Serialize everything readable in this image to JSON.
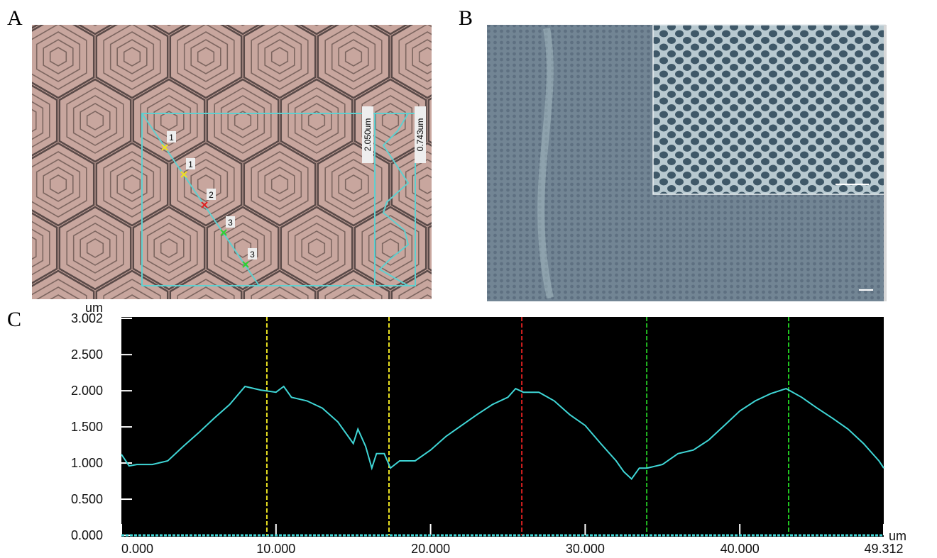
{
  "panel_labels": [
    "A",
    "B",
    "C"
  ],
  "panel_a": {
    "markers": [
      "1",
      "1",
      "2",
      "3",
      "3"
    ],
    "scale_labels": [
      "2.050um",
      "0.743um"
    ]
  },
  "chart_data": {
    "type": "line",
    "ylabel": "um",
    "xlabel": "um",
    "x": [
      0,
      0.5,
      1,
      2,
      3,
      4,
      5,
      6,
      7,
      8,
      9,
      10,
      10.5,
      11,
      12,
      13,
      14,
      15,
      15.3,
      15.8,
      16.2,
      16.5,
      17,
      17.4,
      18,
      19,
      20,
      21,
      22,
      23,
      24,
      25,
      25.5,
      26,
      27,
      28,
      29,
      30,
      31,
      32,
      32.5,
      33,
      33.5,
      34,
      35,
      36,
      37,
      38,
      39,
      40,
      41,
      42,
      43,
      44,
      45,
      46,
      47,
      48,
      49,
      49.312
    ],
    "values": [
      1.12,
      0.96,
      0.98,
      0.98,
      1.03,
      1.23,
      1.42,
      1.62,
      1.81,
      2.06,
      2.01,
      1.98,
      2.06,
      1.91,
      1.86,
      1.76,
      1.57,
      1.27,
      1.47,
      1.23,
      0.93,
      1.13,
      1.13,
      0.93,
      1.03,
      1.03,
      1.18,
      1.37,
      1.52,
      1.67,
      1.81,
      1.91,
      2.03,
      1.98,
      1.98,
      1.86,
      1.67,
      1.52,
      1.27,
      1.03,
      0.88,
      0.78,
      0.93,
      0.93,
      0.98,
      1.13,
      1.18,
      1.32,
      1.52,
      1.72,
      1.86,
      1.96,
      2.03,
      1.91,
      1.76,
      1.62,
      1.47,
      1.27,
      1.03,
      0.93
    ],
    "color": "#3fd6d6",
    "cursors": [
      {
        "x": 9.41,
        "color": "#e8e020"
      },
      {
        "x": 17.31,
        "color": "#e8e020"
      },
      {
        "x": 25.9,
        "color": "#d82020"
      },
      {
        "x": 33.98,
        "color": "#20b820"
      },
      {
        "x": 43.16,
        "color": "#20c820"
      }
    ],
    "xlim": [
      0,
      49.312
    ],
    "ylim": [
      0,
      3.002
    ],
    "xticks": [
      {
        "value": 0,
        "label": "0.000"
      },
      {
        "value": 10,
        "label": "10.000"
      },
      {
        "value": 20,
        "label": "20.000"
      },
      {
        "value": 30,
        "label": "30.000"
      },
      {
        "value": 40,
        "label": "40.000"
      },
      {
        "value": 49.312,
        "label": "49.312"
      }
    ],
    "yticks": [
      {
        "value": 0,
        "label": "0.000"
      },
      {
        "value": 0.5,
        "label": "0.500"
      },
      {
        "value": 1,
        "label": "1.000"
      },
      {
        "value": 1.5,
        "label": "1.500"
      },
      {
        "value": 2,
        "label": "2.000"
      },
      {
        "value": 2.5,
        "label": "2.500"
      },
      {
        "value": 3.002,
        "label": "3.002"
      }
    ]
  }
}
